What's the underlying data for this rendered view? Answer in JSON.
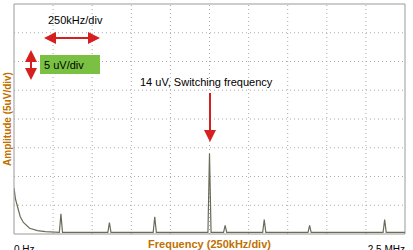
{
  "chart_data": {
    "type": "line",
    "x_label": "Frequency (250kHz/div)",
    "y_label": "Amplitude (5uV/div)",
    "annotations": [
      "250kHz/div",
      "5 uV/div",
      "14 uV, Switching frequency"
    ],
    "x": [
      0,
      0.01,
      0.02,
      0.04,
      0.06,
      0.1,
      0.15,
      0.2,
      0.29,
      0.3,
      0.31,
      0.5,
      0.6,
      0.61,
      0.62,
      0.89,
      0.9,
      0.91,
      1.24,
      1.25,
      1.26,
      1.34,
      1.35,
      1.36,
      1.59,
      1.6,
      1.61,
      1.88,
      1.89,
      1.9,
      2.36,
      2.37,
      2.38,
      2.5
    ],
    "values": [
      8,
      6,
      5,
      3,
      2,
      1,
      0.6,
      0.4,
      0.3,
      3.5,
      0.3,
      0.3,
      0.3,
      2,
      0.3,
      0.3,
      3,
      0.3,
      0.3,
      14,
      0.3,
      0.3,
      1.5,
      0.3,
      0.3,
      2.5,
      0.3,
      0.3,
      1.5,
      0.3,
      0.3,
      2.5,
      0.3,
      0.3
    ],
    "color": "#6b6b5a",
    "xlim": [
      0,
      2.5
    ],
    "ylim": [
      0,
      40
    ],
    "xticks": [
      {
        "value": 0,
        "label": "0 Hz"
      },
      {
        "value": 2.5,
        "label": "2.5 MHz"
      }
    ],
    "tick_labels": "x",
    "grid": true,
    "x_divisions": [
      0.25,
      0.5,
      0.75,
      1,
      1.25,
      1.5,
      1.75,
      2,
      2.25
    ],
    "y_divisions": [
      5,
      10,
      15,
      20,
      25,
      30,
      35
    ]
  }
}
